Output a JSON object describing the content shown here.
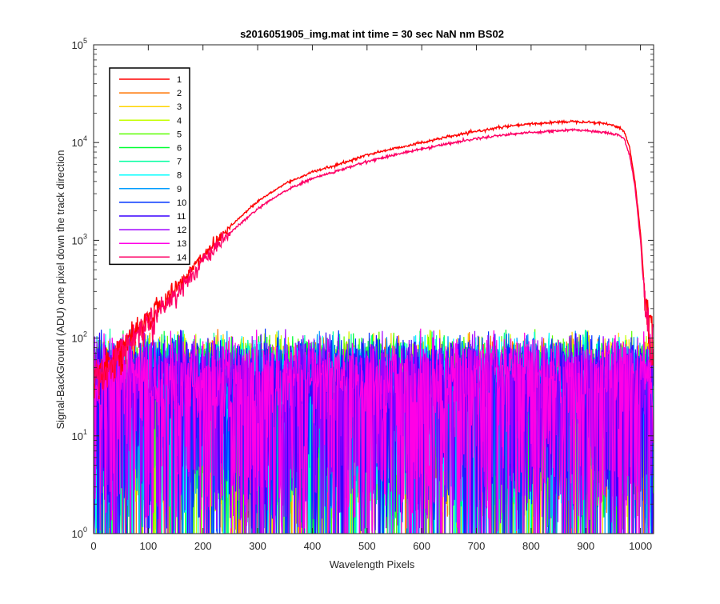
{
  "chart_data": {
    "type": "line",
    "title": "s2016051905_img.mat int time = 30 sec  NaN nm BS02",
    "xlabel": "Wavelength Pixels",
    "ylabel": "Signal-BackGround (ADU) one pixel down the track direction",
    "xlim": [
      0,
      1024
    ],
    "ylim": [
      1,
      100000
    ],
    "yscale": "log",
    "grid": false,
    "legend_position": "top-left",
    "x_ticks": [
      0,
      100,
      200,
      300,
      400,
      500,
      600,
      700,
      800,
      900,
      1000
    ],
    "y_ticks": [
      {
        "value": 1,
        "mantissa": "10",
        "exp": "0"
      },
      {
        "value": 10,
        "mantissa": "10",
        "exp": "1"
      },
      {
        "value": 100,
        "mantissa": "10",
        "exp": "2"
      },
      {
        "value": 1000,
        "mantissa": "10",
        "exp": "3"
      },
      {
        "value": 10000,
        "mantissa": "10",
        "exp": "4"
      },
      {
        "value": 100000,
        "mantissa": "10",
        "exp": "5"
      }
    ],
    "signal_profile": {
      "x": [
        0,
        25,
        50,
        75,
        100,
        150,
        200,
        250,
        300,
        350,
        400,
        450,
        500,
        550,
        600,
        650,
        700,
        750,
        800,
        850,
        880,
        900,
        930,
        950,
        960,
        970,
        980,
        990,
        1000,
        1010,
        1024
      ],
      "series_1": [
        40,
        55,
        80,
        110,
        160,
        320,
        700,
        1400,
        2500,
        3800,
        5000,
        6000,
        7500,
        8700,
        10000,
        11500,
        13000,
        14500,
        15500,
        16200,
        16500,
        16300,
        15800,
        15000,
        14500,
        13000,
        9000,
        4000,
        1200,
        200,
        100
      ],
      "series_14": [
        40,
        50,
        75,
        100,
        150,
        280,
        600,
        1200,
        2100,
        3200,
        4300,
        5200,
        6400,
        7500,
        8600,
        9800,
        11000,
        12000,
        12700,
        13200,
        13500,
        13300,
        12800,
        12300,
        12000,
        11000,
        7500,
        3500,
        1000,
        150,
        80
      ]
    },
    "noise_level_adu": 40,
    "series": [
      {
        "name": "1",
        "color": "#ff0000",
        "kind": "signal"
      },
      {
        "name": "2",
        "color": "#ff7400",
        "kind": "noise"
      },
      {
        "name": "3",
        "color": "#ffd400",
        "kind": "noise"
      },
      {
        "name": "4",
        "color": "#c4ff00",
        "kind": "noise"
      },
      {
        "name": "5",
        "color": "#5cff00",
        "kind": "noise"
      },
      {
        "name": "6",
        "color": "#00ff33",
        "kind": "noise"
      },
      {
        "name": "7",
        "color": "#00ffa0",
        "kind": "noise"
      },
      {
        "name": "8",
        "color": "#00ffff",
        "kind": "noise"
      },
      {
        "name": "9",
        "color": "#009dff",
        "kind": "noise"
      },
      {
        "name": "10",
        "color": "#0033ff",
        "kind": "noise"
      },
      {
        "name": "11",
        "color": "#3a00ff",
        "kind": "noise"
      },
      {
        "name": "12",
        "color": "#a000ff",
        "kind": "noise"
      },
      {
        "name": "13",
        "color": "#ff00e6",
        "kind": "noise"
      },
      {
        "name": "14",
        "color": "#ff0066",
        "kind": "signal"
      }
    ]
  }
}
